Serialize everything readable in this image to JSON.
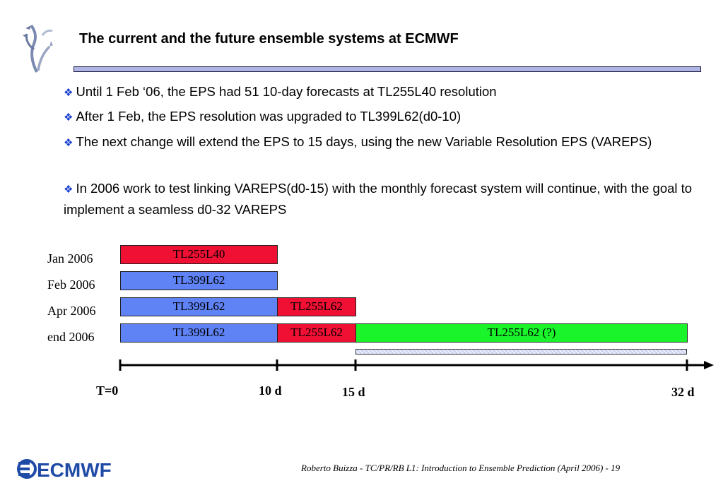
{
  "slide": {
    "title": "The current and the future ensemble systems at ECMWF",
    "bullets": [
      "Until 1 Feb ‘06, the EPS had 51 10-day forecasts at TL255L40 resolution",
      "After 1 Feb, the EPS resolution was upgraded to TL399L62(d0-10)",
      "The next change will extend the EPS to 15 days, using the new Variable Resolution EPS (VAREPS)",
      "In 2006 work to test linking VAREPS(d0-15) with the monthly forecast system will continue, with the goal to implement a seamless d0-32 VAREPS"
    ],
    "bullet_symbol": "❖"
  },
  "diagram": {
    "rows": [
      {
        "label": "Jan 2006",
        "segments": [
          {
            "text": "TL255L40",
            "color": "#ef1033"
          }
        ]
      },
      {
        "label": "Feb 2006",
        "segments": [
          {
            "text": "TL399L62",
            "color": "#5f82f5"
          }
        ]
      },
      {
        "label": "Apr 2006",
        "segments": [
          {
            "text": "TL399L62",
            "color": "#5f82f5"
          },
          {
            "text": "TL255L62",
            "color": "#ef1033"
          }
        ]
      },
      {
        "label": "end 2006",
        "segments": [
          {
            "text": "TL399L62",
            "color": "#5f82f5"
          },
          {
            "text": "TL255L62",
            "color": "#ef1033"
          },
          {
            "text": "TL255L62 (?)",
            "color": "#19f42b"
          }
        ]
      }
    ],
    "axis_ticks": [
      "T=0",
      "10 d",
      "15 d",
      "32 d"
    ]
  },
  "footer": {
    "logo_text": "ECMWF",
    "citation": "Roberto Buizza - TC/PR/RB L1: Introduction to Ensemble Prediction (April 2006) - 19"
  },
  "colors": {
    "title_rule": "#aeb4e4",
    "bullet_diamond": "#1a3fd0",
    "logo_blue": "#1f4aa6"
  }
}
